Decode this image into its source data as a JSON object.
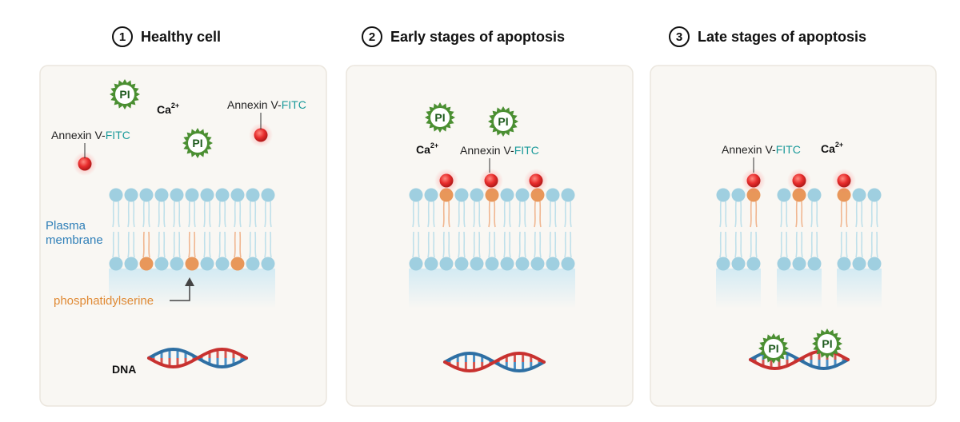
{
  "panels": [
    {
      "number": "1",
      "title": "Healthy cell"
    },
    {
      "number": "2",
      "title": "Early stages of apoptosis"
    },
    {
      "number": "3",
      "title": "Late stages of apoptosis"
    }
  ],
  "labels": {
    "annexin_prefix": "Annexin V-",
    "annexin_suffix": "FITC",
    "calcium": "Ca",
    "calcium_charge": "2+",
    "pi": "PI",
    "plasma_line1": "Plasma",
    "plasma_line2": "membrane",
    "phosphatidylserine": "phosphatidylserine",
    "dna": "DNA"
  },
  "colors": {
    "panel_bg": "#f9f7f3",
    "lipid_head": "#9fcfe0",
    "ps_head": "#e8975a",
    "annexin": "#e82c2c",
    "pi_badge": "#4b8f32",
    "dna_red": "#c8312f",
    "dna_blue": "#2e6fa3"
  }
}
